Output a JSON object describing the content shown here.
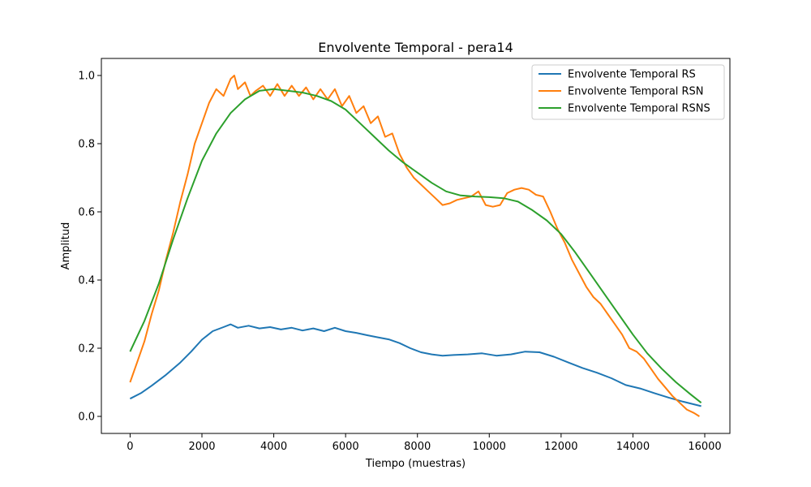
{
  "chart_data": {
    "type": "line",
    "title": "Envolvente Temporal - pera14",
    "xlabel": "Tiempo (muestras)",
    "ylabel": "Amplitud",
    "xlim": [
      -800,
      16700
    ],
    "ylim": [
      -0.05,
      1.05
    ],
    "xticks": [
      0,
      2000,
      4000,
      6000,
      8000,
      10000,
      12000,
      14000,
      16000
    ],
    "yticks": [
      0.0,
      0.2,
      0.4,
      0.6,
      0.8,
      1.0
    ],
    "xtick_labels": [
      "0",
      "2000",
      "4000",
      "6000",
      "8000",
      "10000",
      "12000",
      "14000",
      "16000"
    ],
    "ytick_labels": [
      "0.0",
      "0.2",
      "0.4",
      "0.6",
      "0.8",
      "1.0"
    ],
    "grid": false,
    "legend_position": "top-right",
    "series": [
      {
        "name": "Envolvente Temporal RS",
        "color": "#1f77b4",
        "x": [
          0,
          300,
          600,
          1000,
          1400,
          1700,
          2000,
          2300,
          2600,
          2800,
          3000,
          3300,
          3600,
          3900,
          4200,
          4500,
          4800,
          5100,
          5400,
          5700,
          6000,
          6300,
          6600,
          6900,
          7200,
          7500,
          7800,
          8100,
          8400,
          8700,
          9000,
          9400,
          9800,
          10200,
          10600,
          11000,
          11400,
          11800,
          12200,
          12600,
          13000,
          13400,
          13800,
          14200,
          14600,
          15000,
          15400,
          15900
        ],
        "y": [
          0.052,
          0.068,
          0.09,
          0.122,
          0.158,
          0.19,
          0.225,
          0.25,
          0.262,
          0.27,
          0.26,
          0.266,
          0.258,
          0.262,
          0.255,
          0.26,
          0.252,
          0.258,
          0.25,
          0.26,
          0.25,
          0.245,
          0.238,
          0.232,
          0.226,
          0.215,
          0.2,
          0.188,
          0.182,
          0.178,
          0.18,
          0.182,
          0.185,
          0.178,
          0.182,
          0.19,
          0.188,
          0.175,
          0.158,
          0.142,
          0.128,
          0.112,
          0.092,
          0.082,
          0.068,
          0.055,
          0.043,
          0.03
        ]
      },
      {
        "name": "Envolvente Temporal RSN",
        "color": "#ff7f0e",
        "x": [
          0,
          200,
          400,
          600,
          800,
          1000,
          1200,
          1400,
          1600,
          1800,
          2000,
          2200,
          2400,
          2600,
          2800,
          2900,
          3000,
          3200,
          3350,
          3500,
          3700,
          3900,
          4100,
          4300,
          4500,
          4700,
          4900,
          5100,
          5300,
          5500,
          5700,
          5900,
          6100,
          6300,
          6500,
          6700,
          6900,
          7100,
          7300,
          7500,
          7700,
          7900,
          8100,
          8300,
          8500,
          8700,
          8900,
          9100,
          9300,
          9500,
          9700,
          9900,
          10100,
          10300,
          10500,
          10700,
          10900,
          11100,
          11300,
          11500,
          11700,
          11900,
          12100,
          12300,
          12500,
          12700,
          12900,
          13100,
          13300,
          13500,
          13700,
          13900,
          14100,
          14300,
          14500,
          14700,
          14900,
          15100,
          15300,
          15500,
          15700,
          15850
        ],
        "y": [
          0.1,
          0.16,
          0.22,
          0.3,
          0.37,
          0.46,
          0.54,
          0.63,
          0.71,
          0.8,
          0.86,
          0.92,
          0.96,
          0.94,
          0.99,
          1.0,
          0.96,
          0.98,
          0.94,
          0.955,
          0.97,
          0.94,
          0.975,
          0.94,
          0.97,
          0.94,
          0.965,
          0.93,
          0.96,
          0.93,
          0.96,
          0.91,
          0.94,
          0.89,
          0.91,
          0.86,
          0.88,
          0.82,
          0.83,
          0.77,
          0.73,
          0.7,
          0.68,
          0.66,
          0.64,
          0.62,
          0.625,
          0.635,
          0.64,
          0.645,
          0.66,
          0.62,
          0.615,
          0.62,
          0.655,
          0.665,
          0.67,
          0.665,
          0.65,
          0.645,
          0.6,
          0.55,
          0.51,
          0.46,
          0.42,
          0.38,
          0.35,
          0.33,
          0.3,
          0.27,
          0.24,
          0.2,
          0.19,
          0.17,
          0.14,
          0.11,
          0.085,
          0.06,
          0.04,
          0.02,
          0.01,
          0.0
        ]
      },
      {
        "name": "Envolvente Temporal RSNS",
        "color": "#2ca02c",
        "x": [
          0,
          400,
          800,
          1200,
          1600,
          2000,
          2400,
          2800,
          3200,
          3600,
          4000,
          4400,
          4800,
          5200,
          5600,
          6000,
          6400,
          6800,
          7200,
          7600,
          8000,
          8400,
          8800,
          9200,
          9600,
          10000,
          10400,
          10800,
          11200,
          11600,
          12000,
          12400,
          12800,
          13200,
          13600,
          14000,
          14400,
          14800,
          15200,
          15600,
          15900
        ],
        "y": [
          0.19,
          0.28,
          0.39,
          0.52,
          0.64,
          0.75,
          0.83,
          0.89,
          0.93,
          0.955,
          0.96,
          0.955,
          0.95,
          0.94,
          0.925,
          0.9,
          0.86,
          0.82,
          0.78,
          0.745,
          0.715,
          0.685,
          0.66,
          0.648,
          0.645,
          0.643,
          0.64,
          0.63,
          0.605,
          0.575,
          0.535,
          0.48,
          0.42,
          0.36,
          0.3,
          0.24,
          0.185,
          0.14,
          0.1,
          0.065,
          0.04
        ]
      }
    ]
  }
}
